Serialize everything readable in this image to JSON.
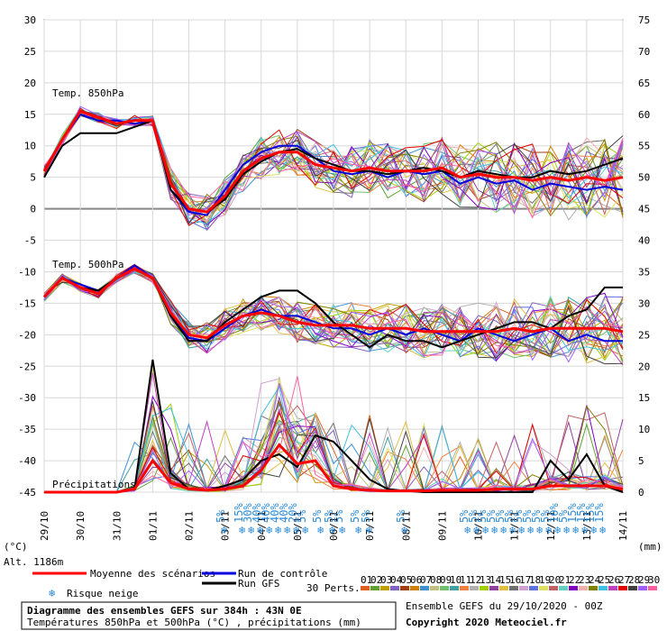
{
  "chart_data": {
    "type": "line",
    "title": "Diagramme des ensembles GEFS sur 384h : 43N 0E",
    "subtitle": "Températures 850hPa et 500hPa (°C) , précipitations (mm)",
    "y_left_unit": "(°C)",
    "y_right_unit": "(mm)",
    "altitude_label": "Alt. 1186m",
    "y_left_ticks": [
      30,
      25,
      20,
      15,
      10,
      5,
      0,
      -5,
      -10,
      -15,
      -20,
      -25,
      -30,
      -35,
      -40,
      -45
    ],
    "y_right_ticks": [
      75,
      70,
      65,
      60,
      55,
      50,
      45,
      40,
      35,
      30,
      25,
      20,
      15,
      10,
      5,
      0
    ],
    "x_tick_labels": [
      "29/10",
      "30/10",
      "31/10",
      "01/11",
      "02/11",
      "03/11",
      "04/11",
      "05/11",
      "06/11",
      "07/11",
      "08/11",
      "09/11",
      "10/11",
      "11/11",
      "12/11",
      "13/11",
      "14/11"
    ],
    "panel_labels": {
      "t850": "Temp. 850hPa",
      "t500": "Temp. 500hPa",
      "precip": "Précipitations"
    },
    "x_hours": [
      0,
      12,
      24,
      36,
      48,
      60,
      72,
      84,
      96,
      108,
      120,
      132,
      144,
      156,
      168,
      180,
      192,
      204,
      216,
      228,
      240,
      252,
      264,
      276,
      288,
      300,
      312,
      324,
      336,
      348,
      360,
      372,
      384
    ],
    "series": [
      {
        "name": "Moyenne des scénarios",
        "key": "t850",
        "color": "#ff0000",
        "values": [
          6,
          11,
          15.5,
          14.5,
          13.5,
          14,
          14,
          4,
          0,
          -0.5,
          2,
          6,
          8,
          9,
          9,
          7,
          6.5,
          6,
          6.5,
          6,
          6,
          6,
          6.5,
          5,
          5.5,
          5,
          5,
          4.5,
          5,
          4.5,
          5,
          4.5,
          5
        ]
      },
      {
        "name": "Run de contrôle",
        "key": "t850",
        "color": "#0000dd",
        "values": [
          6,
          11,
          15,
          14,
          14,
          13.5,
          14,
          3,
          -0.5,
          -1,
          3,
          7,
          9,
          10,
          10,
          8,
          6,
          5.5,
          6,
          5,
          6,
          5.5,
          6,
          4,
          5,
          4,
          4.5,
          3,
          4,
          3.5,
          3,
          3.5,
          3
        ]
      },
      {
        "name": "Run GFS",
        "key": "t850",
        "color": "#000000",
        "values": [
          5,
          10,
          12,
          12,
          12,
          13,
          14,
          3,
          0,
          -0.5,
          1.5,
          5.5,
          7.5,
          9,
          9.5,
          8,
          7,
          6,
          6,
          5.5,
          6,
          6.5,
          6,
          5,
          6,
          5.5,
          5,
          5,
          6,
          5.5,
          6,
          7,
          8
        ]
      },
      {
        "name": "Moyenne des scénarios",
        "key": "t500",
        "color": "#ff0000",
        "values": [
          -14,
          -11,
          -12.5,
          -13.5,
          -11,
          -9.5,
          -11,
          -16.5,
          -20,
          -20.5,
          -18.5,
          -17,
          -16.5,
          -17,
          -18,
          -18.5,
          -18.5,
          -18.5,
          -19,
          -19,
          -19,
          -19.5,
          -19.5,
          -19.5,
          -19.5,
          -19.5,
          -19,
          -19.5,
          -19,
          -19,
          -19,
          -19,
          -19.5
        ]
      },
      {
        "name": "Run de contrôle",
        "key": "t500",
        "color": "#0000dd",
        "values": [
          -14,
          -11,
          -12,
          -13,
          -11,
          -9,
          -11,
          -17,
          -20.5,
          -21,
          -19,
          -17,
          -16,
          -17,
          -17,
          -18,
          -19,
          -19,
          -20,
          -19,
          -20,
          -19,
          -20,
          -21,
          -19,
          -20,
          -21,
          -20,
          -19,
          -21,
          -20,
          -21,
          -21
        ]
      },
      {
        "name": "Run GFS",
        "key": "t500",
        "color": "#000000",
        "values": [
          -14,
          -11,
          -12.5,
          -13,
          -11,
          -9.5,
          -11,
          -17,
          -21,
          -21,
          -18,
          -16,
          -14,
          -13,
          -13,
          -15,
          -18,
          -20,
          -22,
          -20,
          -21,
          -21,
          -22,
          -21,
          -20,
          -19,
          -18,
          -18,
          -19,
          -17,
          -16,
          -12.5,
          -12.5
        ]
      },
      {
        "name": "Moyenne des scénarios",
        "key": "precip",
        "color": "#ff0000",
        "values": [
          0,
          0,
          0,
          0,
          0,
          0.5,
          5,
          1.5,
          0.5,
          0.3,
          0.5,
          1,
          3.5,
          7.5,
          4.5,
          5,
          1,
          0.5,
          0.3,
          0.2,
          0.2,
          0.2,
          0.3,
          0.3,
          0.3,
          0.5,
          0.5,
          0.5,
          1,
          1,
          1,
          1,
          0.5
        ]
      },
      {
        "name": "Run GFS",
        "key": "precip",
        "color": "#000000",
        "values": [
          0,
          0,
          0,
          0,
          0,
          0.5,
          21,
          3,
          0.5,
          0.3,
          1,
          2,
          5,
          6,
          4,
          9,
          8,
          5,
          2,
          0.5,
          0.2,
          0,
          0,
          0,
          0,
          0,
          0,
          0,
          5,
          2,
          6,
          1,
          0
        ]
      }
    ],
    "snow_risk": [
      "5%",
      "15%",
      "30%",
      "40%",
      "40%",
      "40%",
      "40%",
      "20%",
      "5%",
      "5%",
      "5%",
      "5%",
      "5%",
      "5%",
      "5%",
      "5%",
      "5%",
      "5%",
      "5%",
      "5%",
      "5%",
      "5%",
      "5%",
      "5%",
      "5%",
      "10%",
      "5%",
      "15%",
      "15%",
      "15%",
      "15%"
    ],
    "legend": {
      "mean": "Moyenne des scénarios",
      "control": "Run de contrôle",
      "gfs": "Run GFS",
      "snow": "Risque neige",
      "perts": "30 Perts.",
      "pert_numbers": [
        "01",
        "02",
        "03",
        "04",
        "05",
        "06",
        "07",
        "08",
        "09",
        "10",
        "11",
        "12",
        "13",
        "14",
        "15",
        "16",
        "17",
        "18",
        "19",
        "20",
        "21",
        "22",
        "23",
        "24",
        "25",
        "26",
        "27",
        "28",
        "29",
        "30"
      ],
      "pert_colors": [
        "#e06020",
        "#60a030",
        "#c0a000",
        "#8060c0",
        "#a04010",
        "#d08000",
        "#4090d0",
        "#c0c080",
        "#70c070",
        "#40a0a0",
        "#f08040",
        "#b0b0b0",
        "#a0d000",
        "#9040a0",
        "#e0c040",
        "#707070",
        "#d0a0d0",
        "#6070e0",
        "#e0e060",
        "#c06060",
        "#60d0c0",
        "#8000c0",
        "#f0b0b0",
        "#808000",
        "#40c0e0",
        "#c040c0",
        "#e00000",
        "#404040",
        "#a060ff",
        "#ff60a0"
      ],
      "legend_position": "bottom"
    },
    "source_line": "Ensemble GEFS du 29/10/2020 - 00Z",
    "copyright": "Copyright 2020 Meteociel.fr"
  }
}
